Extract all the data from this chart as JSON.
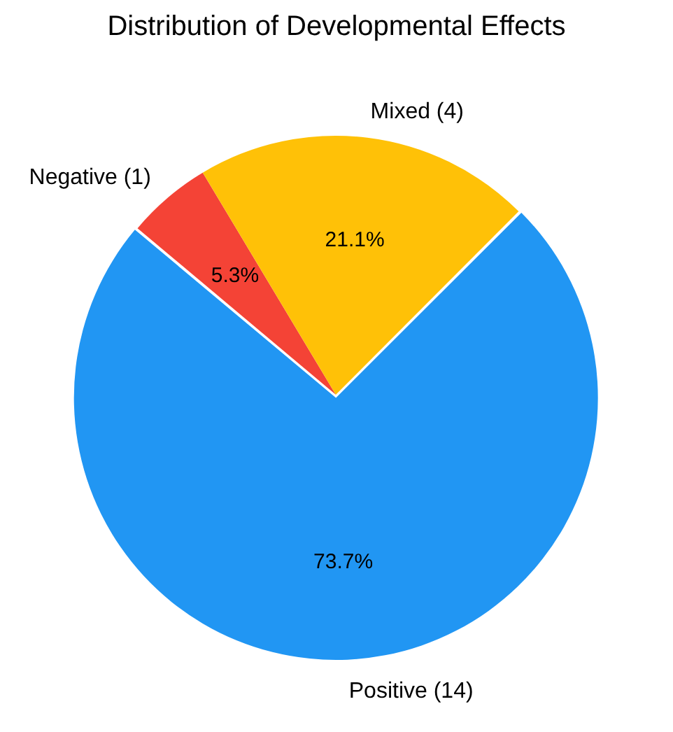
{
  "chart_data": {
    "type": "pie",
    "title": "Distribution of Developmental Effects",
    "categories": [
      "Negative (1)",
      "Mixed (4)",
      "Positive (14)"
    ],
    "values": [
      5.3,
      21.1,
      73.7
    ],
    "colors": [
      "#f44336",
      "#ffc107",
      "#2196f3"
    ],
    "value_labels": [
      "5.3%",
      "21.1%",
      "73.7%"
    ]
  }
}
